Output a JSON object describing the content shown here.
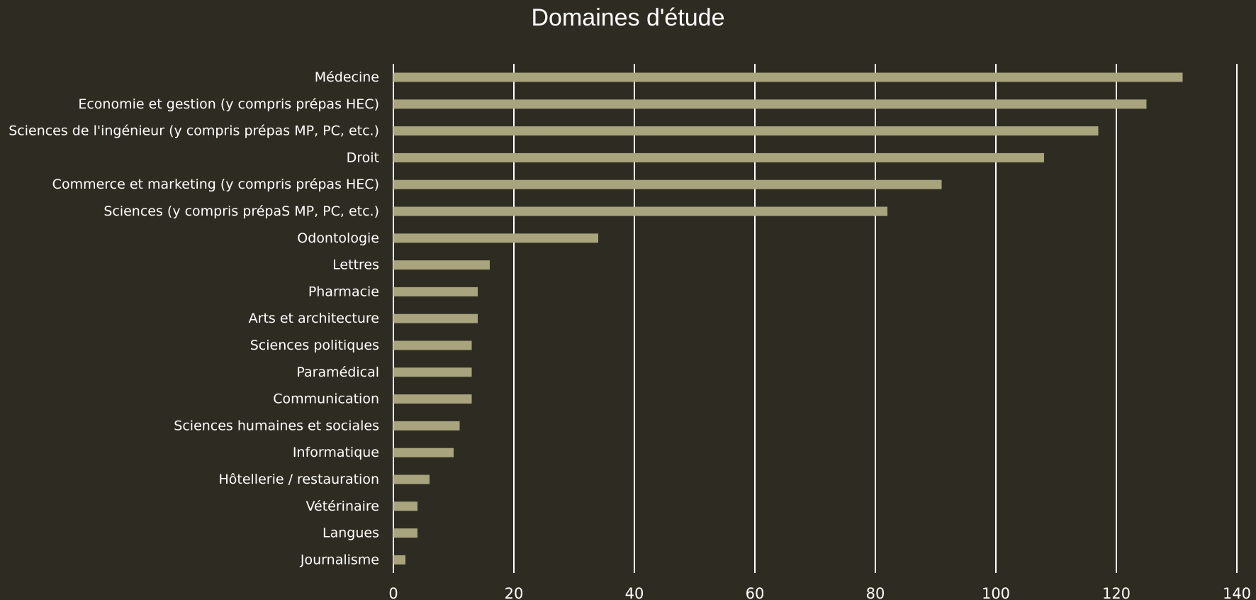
{
  "chart_data": {
    "type": "bar",
    "orientation": "horizontal",
    "title": "Domaines d'étude",
    "xlabel": "",
    "ylabel": "",
    "xlim": [
      0,
      140
    ],
    "x_ticks": [
      0,
      20,
      40,
      60,
      80,
      100,
      120,
      140
    ],
    "grid": "vertical",
    "legend": "none",
    "categories": [
      "Médecine",
      "Economie et gestion (y compris prépas HEC)",
      "Sciences de l'ingénieur (y compris prépas MP, PC, etc.)",
      "Droit",
      "Commerce et marketing (y compris prépas HEC)",
      "Sciences (y compris prépaS MP, PC, etc.)",
      "Odontologie",
      "Lettres",
      "Pharmacie",
      "Arts et architecture",
      "Sciences politiques",
      "Paramédical",
      "Communication",
      "Sciences humaines et sociales",
      "Informatique",
      "Hôtellerie / restauration",
      "Vétérinaire",
      "Langues",
      "Journalisme"
    ],
    "values": [
      131,
      125,
      117,
      108,
      91,
      82,
      34,
      16,
      14,
      14,
      13,
      13,
      13,
      11,
      10,
      6,
      4,
      4,
      2
    ],
    "colors": {
      "background": "#2e2b22",
      "bar": "#a8a47e",
      "grid": "#ffffff",
      "text": "#ffffff"
    }
  }
}
